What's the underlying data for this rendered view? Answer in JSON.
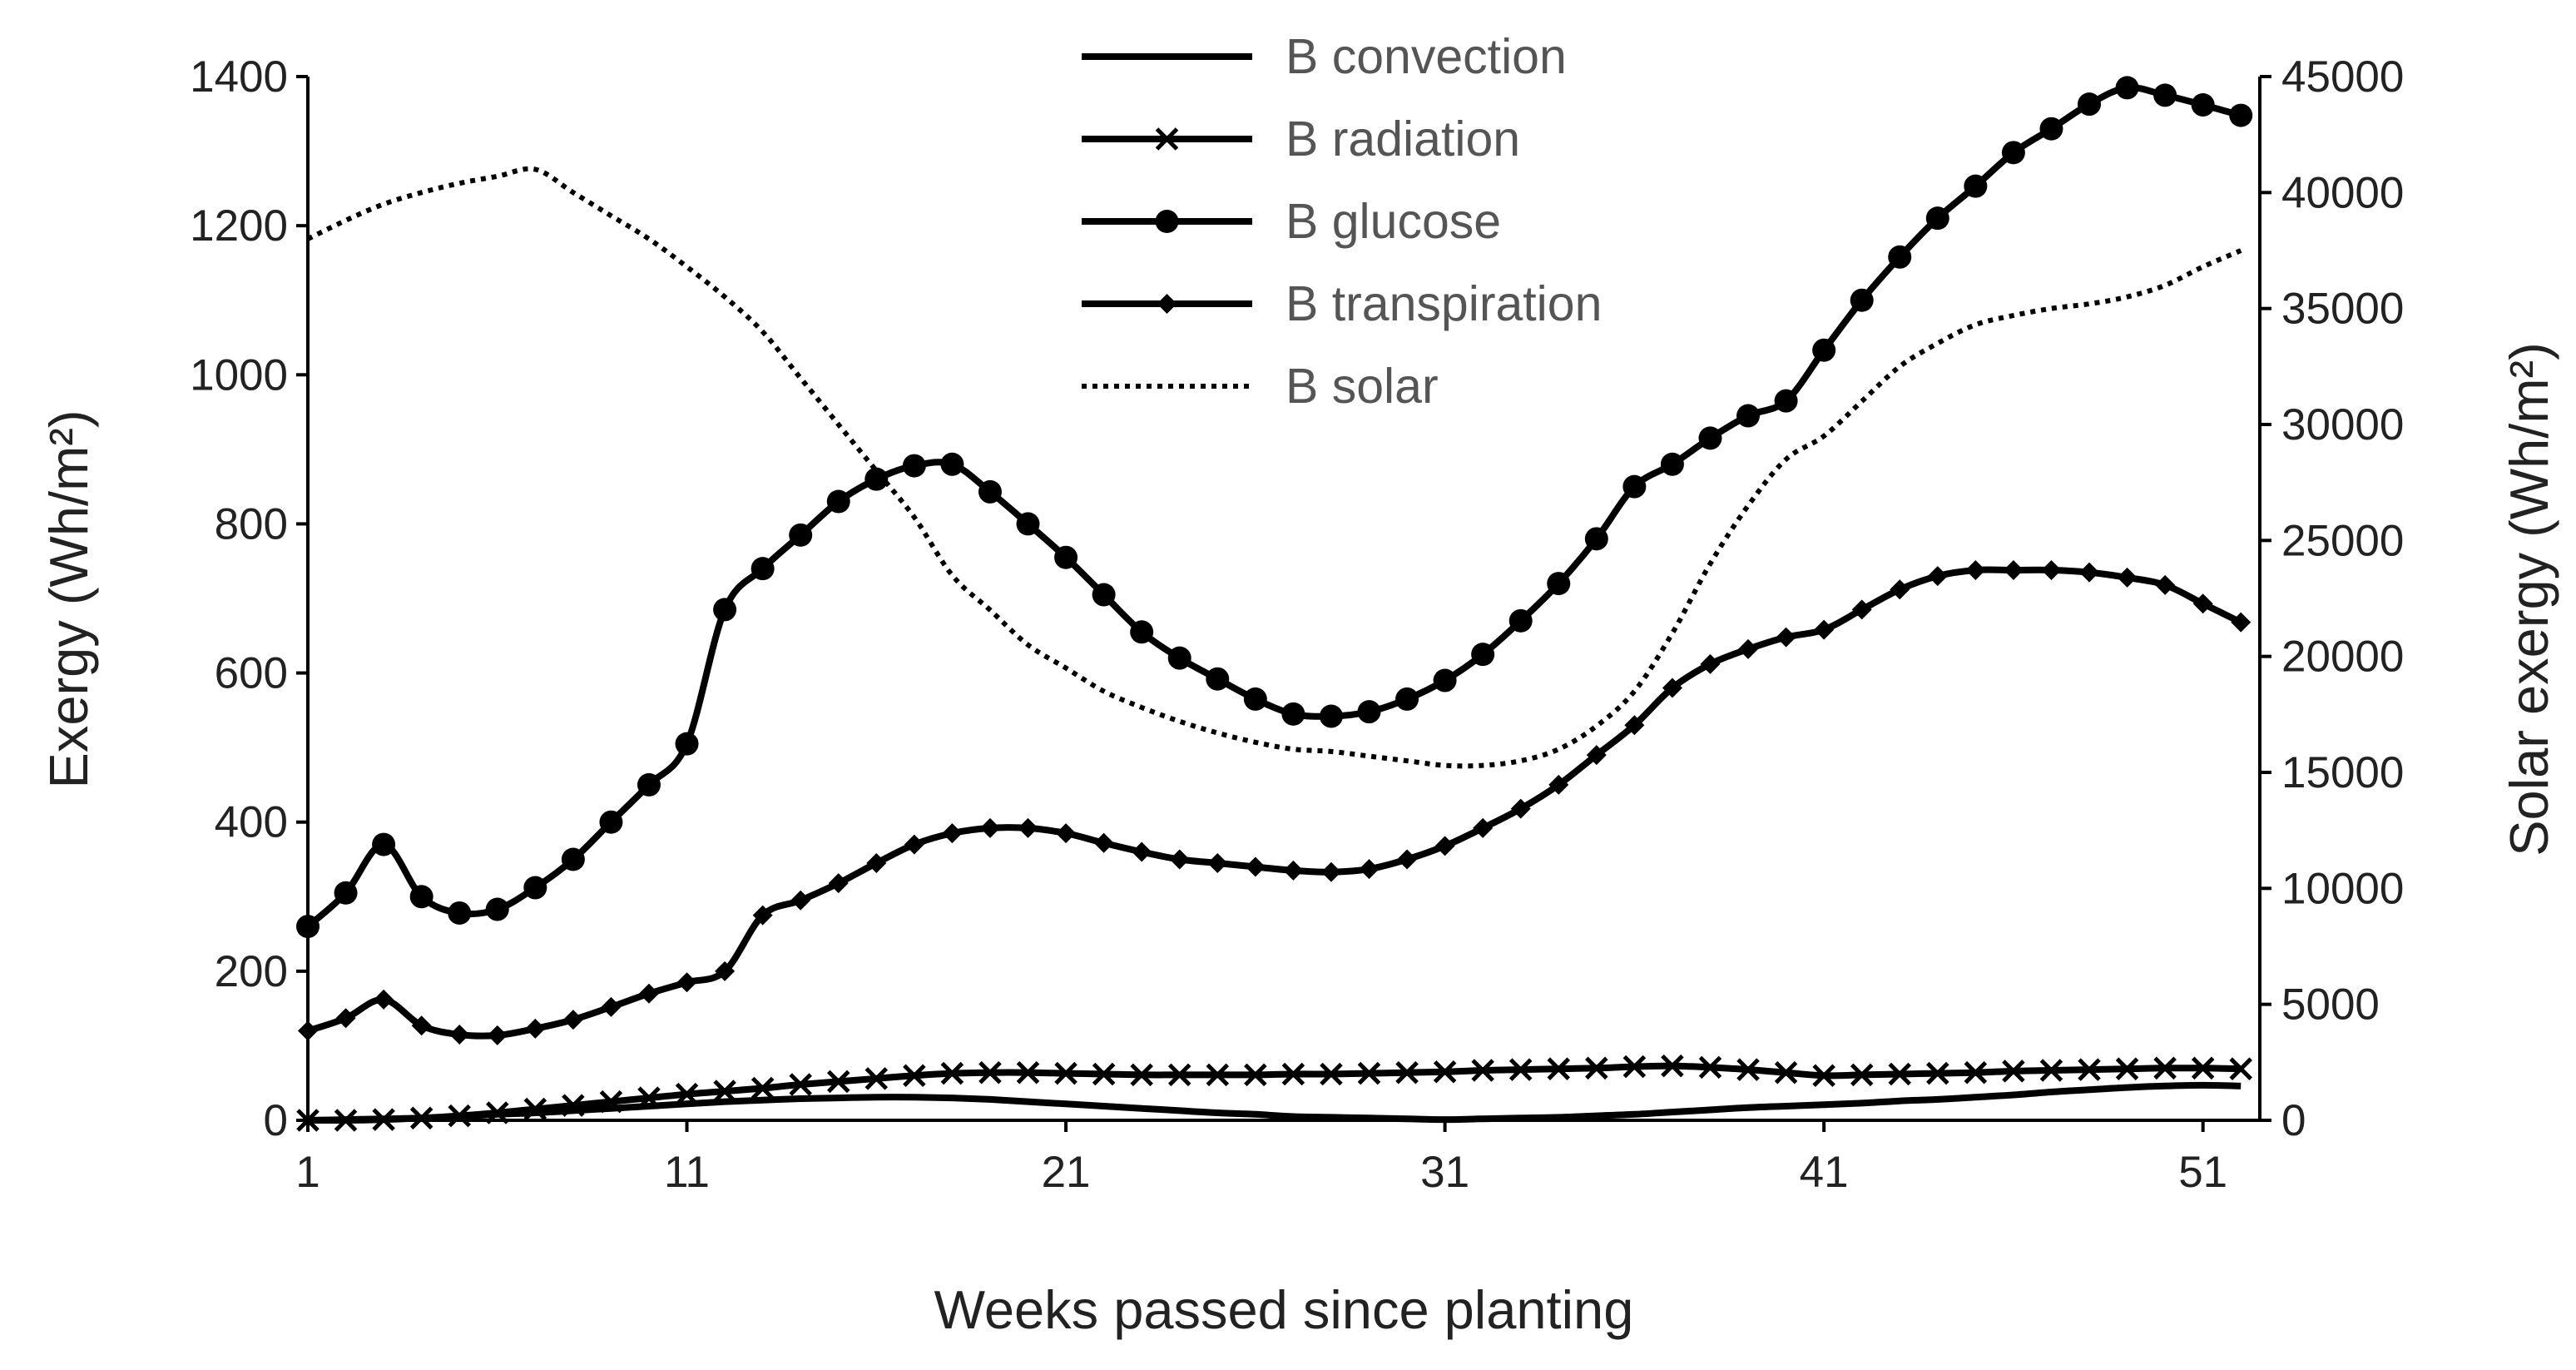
{
  "chart_data": {
    "type": "line",
    "title": "",
    "xlabel": "Weeks passed since planting",
    "ylabel_left": "Exergy (Wh/m²)",
    "ylabel_right": "Solar exergy (Wh/m²)",
    "x": [
      1,
      2,
      3,
      4,
      5,
      6,
      7,
      8,
      9,
      10,
      11,
      12,
      13,
      14,
      15,
      16,
      17,
      18,
      19,
      20,
      21,
      22,
      23,
      24,
      25,
      26,
      27,
      28,
      29,
      30,
      31,
      32,
      33,
      34,
      35,
      36,
      37,
      38,
      39,
      40,
      41,
      42,
      43,
      44,
      45,
      46,
      47,
      48,
      49,
      50,
      51,
      52
    ],
    "xlim": [
      1,
      52.5
    ],
    "xticks": [
      "1",
      "11",
      "21",
      "31",
      "41",
      "51"
    ],
    "ylim_left": [
      0,
      1400
    ],
    "ylim_right": [
      0,
      45000
    ],
    "yticks_left": [
      "0",
      "200",
      "400",
      "600",
      "800",
      "1000",
      "1200",
      "1400"
    ],
    "yticks_right": [
      "0",
      "5000",
      "10000",
      "15000",
      "20000",
      "25000",
      "30000",
      "35000",
      "40000",
      "45000"
    ],
    "legend_position": "top-center",
    "series": [
      {
        "name": "B convection",
        "axis": "left",
        "marker": "none",
        "line": "solid",
        "values": [
          0,
          1,
          2,
          3,
          5,
          8,
          10,
          13,
          16,
          19,
          22,
          25,
          27,
          29,
          30,
          31,
          31,
          30,
          28,
          25,
          22,
          19,
          16,
          13,
          10,
          8,
          5,
          4,
          3,
          2,
          1,
          2,
          3,
          4,
          6,
          8,
          11,
          14,
          17,
          19,
          21,
          23,
          26,
          28,
          31,
          34,
          38,
          41,
          44,
          46,
          47,
          46
        ]
      },
      {
        "name": "B radiation",
        "axis": "left",
        "marker": "x",
        "line": "solid",
        "values": [
          0,
          0,
          1,
          3,
          6,
          10,
          15,
          20,
          25,
          30,
          35,
          39,
          43,
          48,
          52,
          56,
          60,
          63,
          64,
          64,
          63,
          62,
          61,
          61,
          61,
          61,
          62,
          62,
          63,
          64,
          65,
          67,
          68,
          69,
          70,
          72,
          73,
          71,
          68,
          64,
          60,
          61,
          62,
          63,
          64,
          66,
          67,
          68,
          69,
          70,
          70,
          69
        ]
      },
      {
        "name": "B glucose",
        "axis": "left",
        "marker": "circle",
        "line": "solid",
        "values": [
          260,
          305,
          370,
          300,
          278,
          283,
          312,
          350,
          400,
          450,
          505,
          685,
          740,
          785,
          830,
          860,
          878,
          880,
          843,
          800,
          755,
          705,
          655,
          620,
          592,
          565,
          545,
          542,
          548,
          565,
          590,
          625,
          670,
          720,
          780,
          850,
          880,
          915,
          945,
          965,
          1033,
          1100,
          1158,
          1210,
          1253,
          1298,
          1330,
          1363,
          1385,
          1375,
          1362,
          1348
        ]
      },
      {
        "name": "B transpiration",
        "axis": "left",
        "marker": "diamond",
        "line": "solid",
        "values": [
          120,
          137,
          162,
          127,
          115,
          114,
          123,
          135,
          152,
          170,
          185,
          200,
          275,
          295,
          318,
          345,
          370,
          385,
          392,
          392,
          385,
          372,
          360,
          350,
          345,
          340,
          335,
          333,
          337,
          350,
          368,
          392,
          418,
          450,
          490,
          530,
          580,
          612,
          632,
          648,
          658,
          685,
          712,
          730,
          738,
          738,
          738,
          735,
          728,
          718,
          693,
          668
        ]
      },
      {
        "name": "B solar",
        "axis": "right",
        "marker": "none",
        "line": "dotted",
        "values": [
          38000,
          38800,
          39500,
          40000,
          40400,
          40700,
          41000,
          40000,
          39000,
          38000,
          36800,
          35500,
          34000,
          32000,
          30000,
          28000,
          26000,
          23500,
          22000,
          20500,
          19500,
          18500,
          17800,
          17200,
          16700,
          16300,
          16000,
          15900,
          15700,
          15500,
          15300,
          15300,
          15500,
          16000,
          17000,
          18500,
          21000,
          24000,
          26500,
          28500,
          29500,
          31000,
          32500,
          33500,
          34300,
          34700,
          35000,
          35200,
          35500,
          36000,
          36800,
          37500
        ]
      }
    ]
  }
}
